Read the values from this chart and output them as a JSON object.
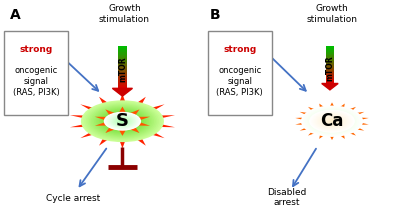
{
  "panel_A_label": "A",
  "panel_B_label": "B",
  "growth_stim_text": "Growth\nstimulation",
  "mtor_text": "mTOR",
  "strong_text": "strong",
  "oncogenic_rest": "oncogenic\nsignal\n(RAS, PI3K)",
  "S_text": "S",
  "Ca_text": "Ca",
  "cycle_arrest_text": "Cycle arrest",
  "disabled_arrest_text": "Disabled\narrest",
  "blue": "#4472C4",
  "dark_red": "#8B0000",
  "bright_red": "#DD0000",
  "green_top": "#00AA00",
  "strong_color": "#CC0000",
  "box_edge": "#888888",
  "figw": 4.15,
  "figh": 2.09,
  "dpi": 100
}
